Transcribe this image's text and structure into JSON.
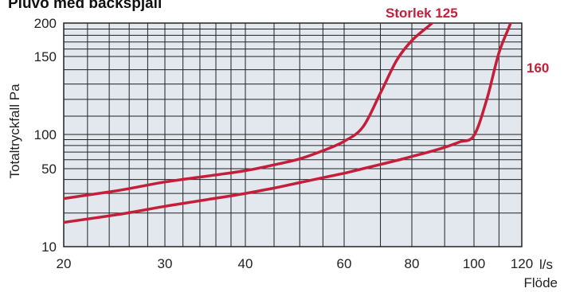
{
  "chart_data": {
    "type": "line",
    "title": "Pluvo med backspjäll",
    "xlabel": "Flöde",
    "x_unit": "l/s",
    "ylabel": "Totaltryckfall Pa",
    "x_scale": "log",
    "y_scale": "log",
    "xlim": [
      20,
      120
    ],
    "ylim": [
      10,
      200
    ],
    "x_ticks": [
      20,
      30,
      40,
      60,
      80,
      100,
      120
    ],
    "x_tick_labels": [
      "20",
      "30",
      "40",
      "60",
      "80",
      "100",
      "120"
    ],
    "y_ticks": [
      10,
      50,
      100,
      150,
      200
    ],
    "y_tick_labels": [
      "10",
      "50",
      "100",
      "150",
      "200"
    ],
    "grid": true,
    "background_color": "#e3e8ee",
    "grid_color": "#222222",
    "line_color": "#c41e3a",
    "series": [
      {
        "name": "Storlek 125",
        "points": [
          [
            20,
            27
          ],
          [
            25,
            32
          ],
          [
            30,
            38
          ],
          [
            35,
            43
          ],
          [
            40,
            48
          ],
          [
            45,
            54
          ],
          [
            50,
            61
          ],
          [
            55,
            72
          ],
          [
            60,
            87
          ],
          [
            65,
            104
          ],
          [
            70,
            124
          ],
          [
            75,
            147
          ],
          [
            80,
            172
          ],
          [
            85,
            195
          ],
          [
            88,
            210
          ]
        ]
      },
      {
        "name": "160",
        "points": [
          [
            20,
            16.5
          ],
          [
            25,
            19.5
          ],
          [
            30,
            23
          ],
          [
            35,
            26.5
          ],
          [
            40,
            30
          ],
          [
            45,
            33.5
          ],
          [
            50,
            37.5
          ],
          [
            55,
            41.5
          ],
          [
            60,
            45.5
          ],
          [
            65,
            50
          ],
          [
            70,
            54.5
          ],
          [
            75,
            59
          ],
          [
            80,
            64
          ],
          [
            85,
            70
          ],
          [
            90,
            77
          ],
          [
            95,
            86
          ],
          [
            100,
            98
          ],
          [
            105,
            120
          ],
          [
            110,
            155
          ],
          [
            115,
            200
          ],
          [
            120,
            265
          ]
        ]
      }
    ]
  }
}
